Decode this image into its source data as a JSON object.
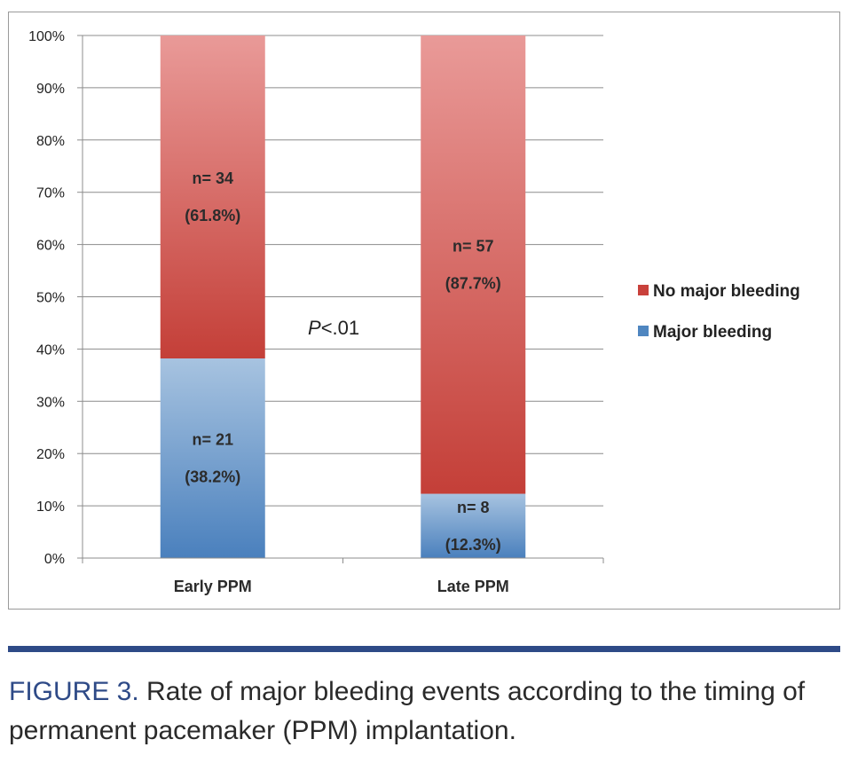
{
  "chart_data": {
    "type": "bar",
    "stacked": true,
    "percent": true,
    "categories": [
      "Early PPM",
      "Late PPM"
    ],
    "series": [
      {
        "name": "Major bleeding",
        "color": "#4f86c0",
        "values": [
          38.2,
          12.3
        ],
        "labels": [
          [
            "n= 21",
            "(38.2%)"
          ],
          [
            "n= 8",
            "(12.3%)"
          ]
        ]
      },
      {
        "name": "No major bleeding",
        "color": "#c9413b",
        "values": [
          61.8,
          87.7
        ],
        "labels": [
          [
            "n= 34",
            "(61.8%)"
          ],
          [
            "n= 57",
            "(87.7%)"
          ]
        ]
      }
    ],
    "ylim": [
      0,
      100
    ],
    "yticks": [
      "0%",
      "10%",
      "20%",
      "30%",
      "40%",
      "50%",
      "60%",
      "70%",
      "80%",
      "90%",
      "100%"
    ],
    "grid": true,
    "legend": "right",
    "legend_entries": [
      "No major bleeding",
      "Major bleeding"
    ],
    "annotation": {
      "italic": "P",
      "text": "<.01"
    },
    "xlabel": "",
    "ylabel": ""
  },
  "caption": {
    "label": "FIGURE 3.",
    "text": " Rate of major bleeding events according to the timing of permanent pacemaker (PPM) implantation."
  }
}
